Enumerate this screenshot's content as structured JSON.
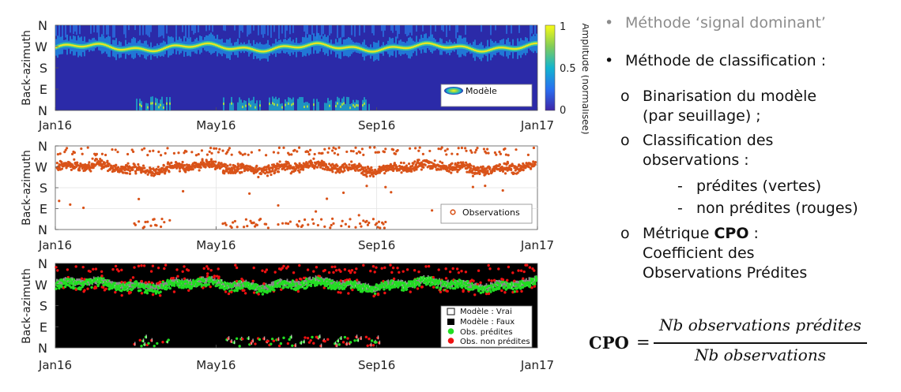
{
  "chart_data": [
    {
      "type": "heatmap",
      "ylabel": "Back-azimuth",
      "yticks": [
        "N",
        "W",
        "S",
        "E",
        "N"
      ],
      "xticks": [
        "Jan16",
        "May16",
        "Sep16",
        "Jan17"
      ],
      "legend": [
        "Modèle"
      ],
      "legend_position": "bottom-right",
      "colorbar": {
        "label": "Amplitude (normalisée)",
        "ticks": [
          "0",
          "0.5",
          "1"
        ],
        "range": [
          0,
          1
        ]
      }
    },
    {
      "type": "scatter",
      "ylabel": "Back-azimuth",
      "yticks": [
        "N",
        "W",
        "S",
        "E",
        "N"
      ],
      "xticks": [
        "Jan16",
        "May16",
        "Sep16",
        "Jan17"
      ],
      "legend": [
        "Observations"
      ],
      "legend_position": "bottom-right",
      "grid": true,
      "color": "#d95319"
    },
    {
      "type": "scatter",
      "ylabel": "Back-azimuth",
      "yticks": [
        "N",
        "W",
        "S",
        "E",
        "N"
      ],
      "xticks": [
        "Jan16",
        "May16",
        "Sep16",
        "Jan17"
      ],
      "legend": [
        "Modèle : Vrai",
        "Modèle : Faux",
        "Obs. prédites",
        "Obs. non prédites"
      ],
      "legend_position": "bottom-right",
      "colors": {
        "model_true": "#ffffff",
        "model_false": "#000000",
        "predicted": "#22dd22",
        "not_predicted": "#ee1111"
      }
    }
  ],
  "text": {
    "bullet1": "Méthode ‘signal dominant’",
    "bullet2": "Méthode de classification :",
    "sub1_line1": "Binarisation du modèle",
    "sub1_line2": "(par seuillage) ;",
    "sub2_line1": "Classification des",
    "sub2_line2": "observations :",
    "dash1": "prédites (vertes)",
    "dash2": "non prédites (rouges)",
    "sub3_pre": "Métrique ",
    "sub3_bold": "CPO",
    "sub3_post": " :",
    "sub3_line2": "Coefficient des",
    "sub3_line3": "Observations Prédites",
    "bullet_dot": "•",
    "sub_marker": "o",
    "dash_marker": "-"
  },
  "formula": {
    "lhs": "CPO",
    "equals": "=",
    "numerator": "Nb observations prédites",
    "denominator": "Nb observations"
  },
  "colors": {
    "model_background": "#2b2aa8",
    "bullet_gray": "#8c8c8c"
  }
}
